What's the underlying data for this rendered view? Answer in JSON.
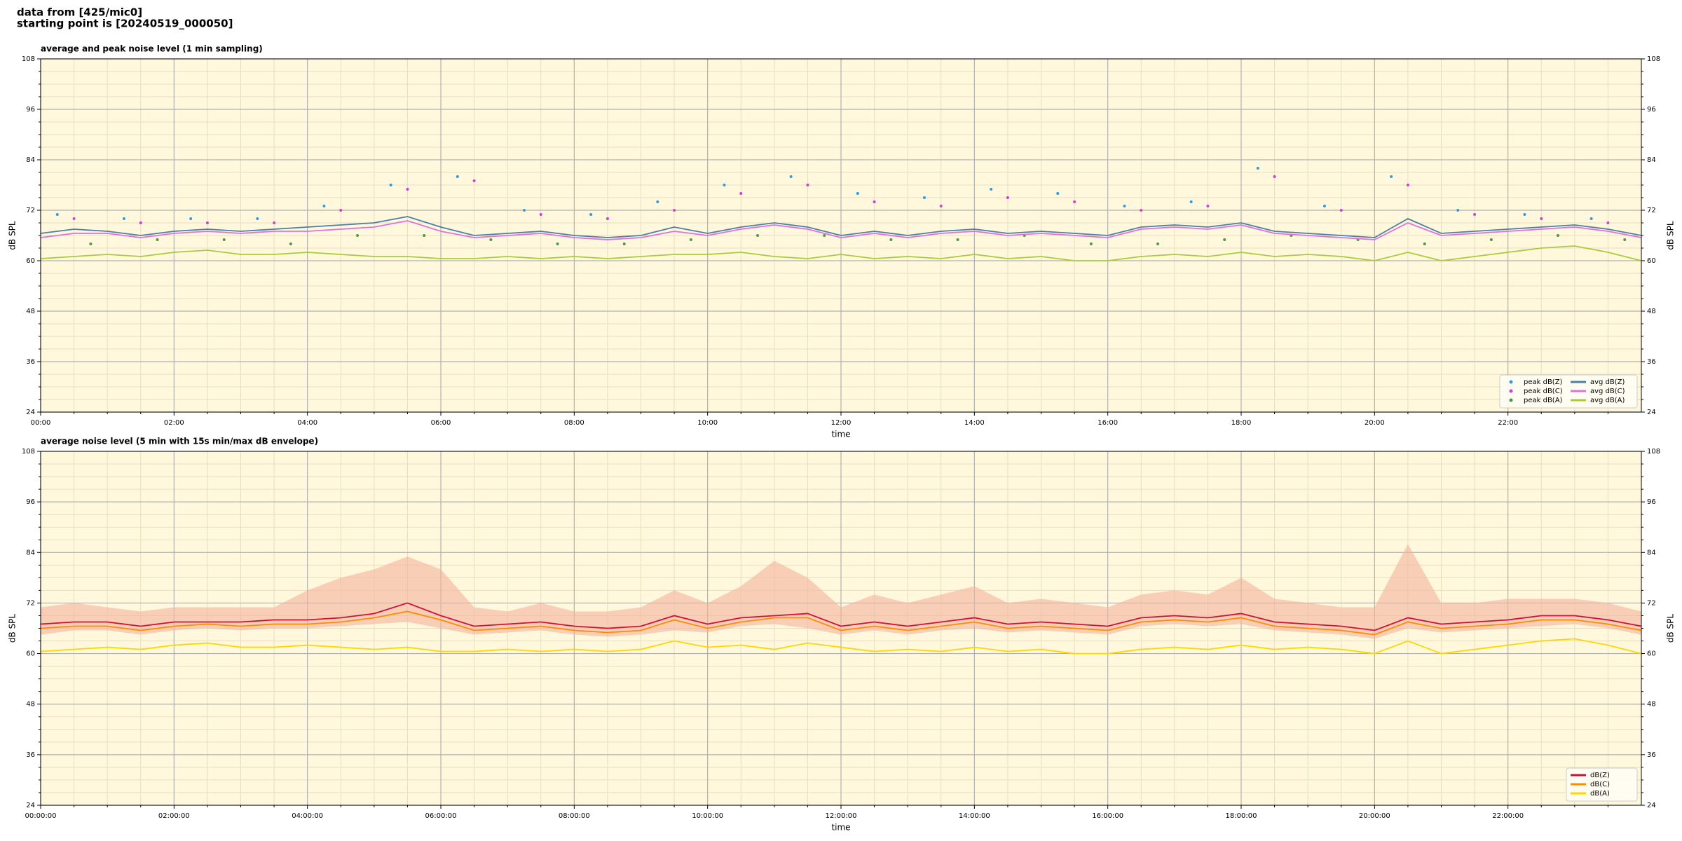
{
  "header": {
    "line1": "data from [425/mic0]",
    "line2": "starting point is [20240519_000050]"
  },
  "chart_data": [
    {
      "type": "line",
      "title": "average and peak noise level (1 min sampling)",
      "xlabel": "time",
      "ylabel": "dB SPL",
      "background": "#fff8dc",
      "grid": true,
      "legend": "lower right",
      "legend_columns": 2,
      "xlim": [
        0,
        24
      ],
      "ylim": [
        24,
        108
      ],
      "xticks": [
        {
          "value": 0,
          "label": "00:00"
        },
        {
          "value": 2,
          "label": "02:00"
        },
        {
          "value": 4,
          "label": "04:00"
        },
        {
          "value": 6,
          "label": "06:00"
        },
        {
          "value": 8,
          "label": "08:00"
        },
        {
          "value": 10,
          "label": "10:00"
        },
        {
          "value": 12,
          "label": "12:00"
        },
        {
          "value": 14,
          "label": "14:00"
        },
        {
          "value": 16,
          "label": "16:00"
        },
        {
          "value": 18,
          "label": "18:00"
        },
        {
          "value": 20,
          "label": "20:00"
        },
        {
          "value": 22,
          "label": "22:00"
        }
      ],
      "xminorticks": [
        0.5,
        1,
        1.5,
        2.5,
        3,
        3.5,
        4.5,
        5,
        5.5,
        6.5,
        7,
        7.5,
        8.5,
        9,
        9.5,
        10.5,
        11,
        11.5,
        12.5,
        13,
        13.5,
        14.5,
        15,
        15.5,
        16.5,
        17,
        17.5,
        18.5,
        19,
        19.5,
        20.5,
        21,
        21.5,
        22.5,
        23,
        23.5
      ],
      "yticks": [
        24,
        36,
        48,
        60,
        72,
        84,
        96,
        108
      ],
      "yminorticks": [
        27,
        30,
        33,
        39,
        42,
        45,
        51,
        54,
        57,
        63,
        66,
        69,
        75,
        78,
        81,
        87,
        90,
        93,
        99,
        102,
        105
      ],
      "x": [
        0,
        0.5,
        1,
        1.5,
        2,
        2.5,
        3,
        3.5,
        4,
        4.5,
        5,
        5.5,
        6,
        6.5,
        7,
        7.5,
        8,
        8.5,
        9,
        9.5,
        10,
        10.5,
        11,
        11.5,
        12,
        12.5,
        13,
        13.5,
        14,
        14.5,
        15,
        15.5,
        16,
        16.5,
        17,
        17.5,
        18,
        18.5,
        19,
        19.5,
        20,
        20.5,
        21,
        21.5,
        22,
        22.5,
        23,
        23.5,
        24
      ],
      "series": [
        {
          "name": "peak dB(Z)",
          "type": "scatter",
          "color": "#2f9be0",
          "x": [
            0.25,
            1.25,
            2.25,
            3.25,
            4.25,
            5.25,
            6.25,
            7.25,
            8.25,
            9.25,
            10.25,
            11.25,
            12.25,
            13.25,
            14.25,
            15.25,
            16.25,
            17.25,
            18.25,
            19.25,
            20.25,
            21.25,
            22.25,
            23.25
          ],
          "values": [
            71,
            70,
            70,
            70,
            73,
            78,
            80,
            72,
            71,
            74,
            78,
            80,
            76,
            75,
            77,
            76,
            73,
            74,
            82,
            73,
            80,
            72,
            71,
            70
          ]
        },
        {
          "name": "peak dB(C)",
          "type": "scatter",
          "color": "#d13fd6",
          "x": [
            0.5,
            1.5,
            2.5,
            3.5,
            4.5,
            5.5,
            6.5,
            7.5,
            8.5,
            9.5,
            10.5,
            11.5,
            12.5,
            13.5,
            14.5,
            15.5,
            16.5,
            17.5,
            18.5,
            19.5,
            20.5,
            21.5,
            22.5,
            23.5
          ],
          "values": [
            70,
            69,
            69,
            69,
            72,
            77,
            79,
            71,
            70,
            72,
            76,
            78,
            74,
            73,
            75,
            74,
            72,
            73,
            80,
            72,
            78,
            71,
            70,
            69
          ]
        },
        {
          "name": "peak dB(A)",
          "type": "scatter",
          "color": "#4e9848",
          "x": [
            0.75,
            1.75,
            2.75,
            3.75,
            4.75,
            5.75,
            6.75,
            7.75,
            8.75,
            9.75,
            10.75,
            11.75,
            12.75,
            13.75,
            14.75,
            15.75,
            16.75,
            17.75,
            18.75,
            19.75,
            20.75,
            21.75,
            22.75,
            23.75
          ],
          "values": [
            64,
            65,
            65,
            64,
            66,
            66,
            65,
            64,
            64,
            65,
            66,
            66,
            65,
            65,
            66,
            64,
            64,
            65,
            66,
            65,
            64,
            65,
            66,
            65
          ]
        },
        {
          "name": "avg dB(Z)",
          "type": "line",
          "color": "#4a7fa8",
          "values": [
            66.5,
            67.5,
            67,
            66,
            67,
            67.5,
            67,
            67.5,
            68,
            68.5,
            69,
            70.5,
            68,
            66,
            66.5,
            67,
            66,
            65.5,
            66,
            68,
            66.5,
            68,
            69,
            68,
            66,
            67,
            66,
            67,
            67.5,
            66.5,
            67,
            66.5,
            66,
            68,
            68.5,
            68,
            69,
            67,
            66.5,
            66,
            65.5,
            70,
            66.5,
            67,
            67.5,
            68,
            68.5,
            67.5,
            66
          ]
        },
        {
          "name": "avg dB(C)",
          "type": "line",
          "color": "#e070e0",
          "values": [
            65.5,
            66.5,
            66.5,
            65.5,
            66.5,
            67,
            66.5,
            67,
            67,
            67.5,
            68,
            69.5,
            67,
            65.5,
            66,
            66.5,
            65.5,
            65,
            65.5,
            67,
            66,
            67.5,
            68.5,
            67.5,
            65.5,
            66.5,
            65.5,
            66.5,
            67,
            66,
            66.5,
            66,
            65.5,
            67.5,
            68,
            67.5,
            68.5,
            66.5,
            66,
            65.5,
            65,
            69,
            66,
            66.5,
            67,
            67.5,
            68,
            67,
            65.5
          ]
        },
        {
          "name": "avg dB(A)",
          "type": "line",
          "color": "#a8cc3c",
          "values": [
            60.5,
            61,
            61.5,
            61,
            62,
            62.5,
            61.5,
            61.5,
            62,
            61.5,
            61,
            61,
            60.5,
            60.5,
            61,
            60.5,
            61,
            60.5,
            61,
            61.5,
            61.5,
            62,
            61,
            60.5,
            61.5,
            60.5,
            61,
            60.5,
            61.5,
            60.5,
            61,
            60,
            60,
            61,
            61.5,
            61,
            62,
            61,
            61.5,
            61,
            60,
            62,
            60,
            61,
            62,
            63,
            63.5,
            62,
            60
          ]
        }
      ]
    },
    {
      "type": "line",
      "title": "average noise level (5 min with 15s min/max dB envelope)",
      "xlabel": "time",
      "ylabel": "dB SPL",
      "background": "#fff8dc",
      "grid": true,
      "legend": "lower right",
      "legend_columns": 1,
      "xlim": [
        0,
        24
      ],
      "ylim": [
        24,
        108
      ],
      "xticks": [
        {
          "value": 0,
          "label": "00:00:00"
        },
        {
          "value": 2,
          "label": "02:00:00"
        },
        {
          "value": 4,
          "label": "04:00:00"
        },
        {
          "value": 6,
          "label": "06:00:00"
        },
        {
          "value": 8,
          "label": "08:00:00"
        },
        {
          "value": 10,
          "label": "10:00:00"
        },
        {
          "value": 12,
          "label": "12:00:00"
        },
        {
          "value": 14,
          "label": "14:00:00"
        },
        {
          "value": 16,
          "label": "16:00:00"
        },
        {
          "value": 18,
          "label": "18:00:00"
        },
        {
          "value": 20,
          "label": "20:00:00"
        },
        {
          "value": 22,
          "label": "22:00:00"
        }
      ],
      "xminorticks": [
        0.5,
        1,
        1.5,
        2.5,
        3,
        3.5,
        4.5,
        5,
        5.5,
        6.5,
        7,
        7.5,
        8.5,
        9,
        9.5,
        10.5,
        11,
        11.5,
        12.5,
        13,
        13.5,
        14.5,
        15,
        15.5,
        16.5,
        17,
        17.5,
        18.5,
        19,
        19.5,
        20.5,
        21,
        21.5,
        22.5,
        23,
        23.5
      ],
      "yticks": [
        24,
        36,
        48,
        60,
        72,
        84,
        96,
        108
      ],
      "yminorticks": [
        27,
        30,
        33,
        39,
        42,
        45,
        51,
        54,
        57,
        63,
        66,
        69,
        75,
        78,
        81,
        87,
        90,
        93,
        99,
        102,
        105
      ],
      "x": [
        0,
        0.5,
        1,
        1.5,
        2,
        2.5,
        3,
        3.5,
        4,
        4.5,
        5,
        5.5,
        6,
        6.5,
        7,
        7.5,
        8,
        8.5,
        9,
        9.5,
        10,
        10.5,
        11,
        11.5,
        12,
        12.5,
        13,
        13.5,
        14,
        14.5,
        15,
        15.5,
        16,
        16.5,
        17,
        17.5,
        18,
        18.5,
        19,
        19.5,
        20,
        20.5,
        21,
        21.5,
        22,
        22.5,
        23,
        23.5,
        24
      ],
      "envelope": {
        "color": "#f4b49c",
        "upper": [
          71,
          72,
          71,
          70,
          71,
          71,
          71,
          71,
          75,
          78,
          80,
          83,
          80,
          71,
          70,
          72,
          70,
          70,
          71,
          75,
          72,
          76,
          82,
          78,
          71,
          74,
          72,
          74,
          76,
          72,
          73,
          72,
          71,
          74,
          75,
          74,
          78,
          73,
          72,
          71,
          71,
          86,
          72,
          72,
          73,
          73,
          73,
          72,
          70
        ],
        "lower": [
          64.5,
          65.5,
          65.5,
          64.5,
          65.5,
          66,
          65.5,
          66,
          66,
          66.5,
          67,
          67.5,
          66,
          64.5,
          65,
          65.5,
          64.5,
          64,
          64.5,
          65.5,
          65,
          66.5,
          67,
          66,
          64.5,
          65.5,
          64.5,
          65.5,
          66,
          65,
          65.5,
          65,
          64.5,
          66.5,
          67,
          66.5,
          67,
          65.5,
          65,
          64.5,
          63.5,
          66,
          65,
          65.5,
          66,
          66.5,
          67,
          66,
          64.5
        ]
      },
      "series": [
        {
          "name": "dB(Z)",
          "type": "line",
          "color": "#d0103a",
          "values": [
            67,
            67.5,
            67.5,
            66.5,
            67.5,
            67.5,
            67.5,
            68,
            68,
            68.5,
            69.5,
            72,
            69,
            66.5,
            67,
            67.5,
            66.5,
            66,
            66.5,
            69,
            67,
            68.5,
            69,
            69.5,
            66.5,
            67.5,
            66.5,
            67.5,
            68.5,
            67,
            67.5,
            67,
            66.5,
            68.5,
            69,
            68.5,
            69.5,
            67.5,
            67,
            66.5,
            65.5,
            68.5,
            67,
            67.5,
            68,
            69,
            69,
            68,
            66.5
          ]
        },
        {
          "name": "dB(C)",
          "type": "line",
          "color": "#ff8c00",
          "values": [
            66,
            66.5,
            66.5,
            65.5,
            66.5,
            67,
            66.5,
            67,
            67,
            67.5,
            68.5,
            70,
            68,
            65.5,
            66,
            66.5,
            65.5,
            65,
            65.5,
            68,
            66,
            67.5,
            68.5,
            68.5,
            65.5,
            66.5,
            65.5,
            66.5,
            67.5,
            66,
            66.5,
            66,
            65.5,
            67.5,
            68,
            67.5,
            68.5,
            66.5,
            66,
            65.5,
            64.5,
            67.5,
            66,
            66.5,
            67,
            68,
            68,
            67,
            65.5
          ]
        },
        {
          "name": "dB(A)",
          "type": "line",
          "color": "#ffd700",
          "values": [
            60.5,
            61,
            61.5,
            61,
            62,
            62.5,
            61.5,
            61.5,
            62,
            61.5,
            61,
            61.5,
            60.5,
            60.5,
            61,
            60.5,
            61,
            60.5,
            61,
            63,
            61.5,
            62,
            61,
            62.5,
            61.5,
            60.5,
            61,
            60.5,
            61.5,
            60.5,
            61,
            60,
            60,
            61,
            61.5,
            61,
            62,
            61,
            61.5,
            61,
            60,
            63,
            60,
            61,
            62,
            63,
            63.5,
            62,
            60
          ]
        }
      ]
    }
  ]
}
